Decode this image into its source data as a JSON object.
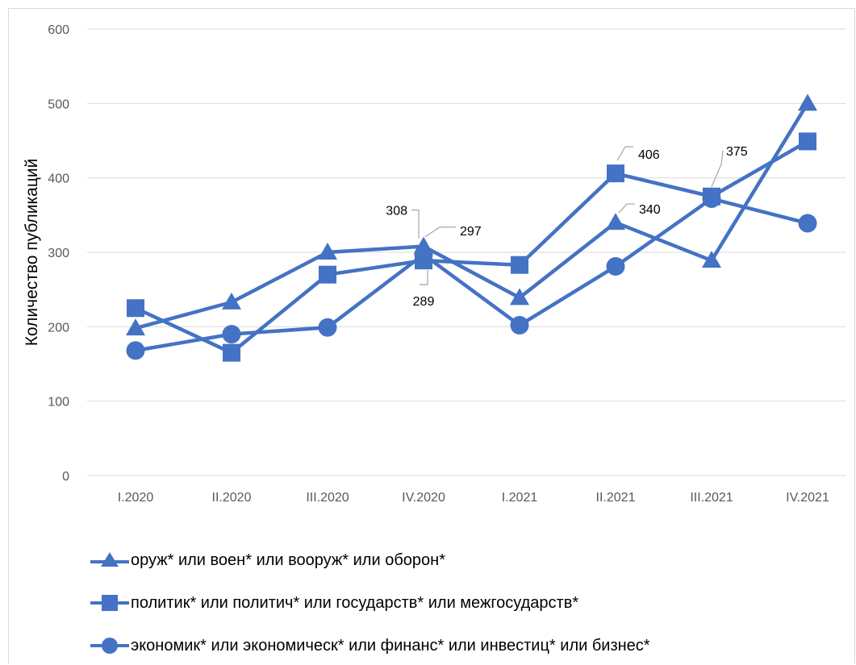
{
  "chart_data": {
    "type": "line",
    "ylabel": "Количество публикаций",
    "ylim": [
      0,
      600
    ],
    "yticks": [
      "0",
      "100",
      "200",
      "300",
      "400",
      "500",
      "600"
    ],
    "categories": [
      "I.2020",
      "II.2020",
      "III.2020",
      "IV.2020",
      "I.2021",
      "II.2021",
      "III.2021",
      "IV.2021"
    ],
    "grid": true,
    "legend_position": "bottom",
    "color": "#4472C4",
    "series": [
      {
        "name": "оруж* или воен* или вооруж* или оборон*",
        "marker": "triangle",
        "values": [
          198,
          233,
          300,
          308,
          239,
          340,
          289,
          500
        ]
      },
      {
        "name": "политик* или политич* или государств* или межгосударств*",
        "marker": "square",
        "values": [
          225,
          165,
          270,
          289,
          283,
          406,
          375,
          449
        ]
      },
      {
        "name": "экономик* или экономическ* или финанс* или инвестиц* или бизнес*",
        "marker": "circle",
        "values": [
          168,
          190,
          199,
          297,
          202,
          281,
          372,
          339
        ]
      }
    ],
    "data_labels": [
      {
        "text": "308",
        "series": 0,
        "index": 3
      },
      {
        "text": "297",
        "series": 2,
        "index": 3
      },
      {
        "text": "289",
        "series": 1,
        "index": 3
      },
      {
        "text": "406",
        "series": 1,
        "index": 5
      },
      {
        "text": "340",
        "series": 0,
        "index": 5
      },
      {
        "text": "375",
        "series": 1,
        "index": 6
      }
    ]
  }
}
